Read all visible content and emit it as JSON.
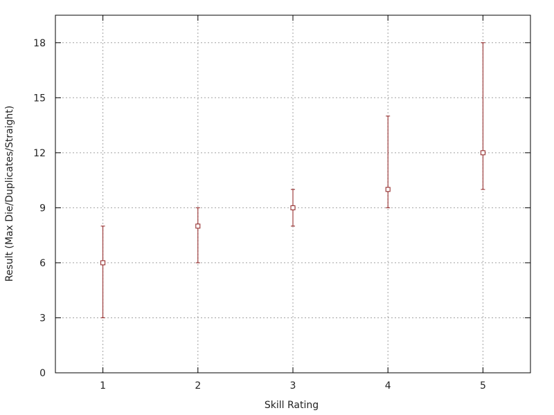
{
  "chart_data": {
    "type": "scatter",
    "title": "",
    "xlabel": "Skill Rating",
    "ylabel": "Result (Max Die/Duplicates/Straight)",
    "xlim": [
      0.5,
      5.5
    ],
    "ylim": [
      0,
      19.5
    ],
    "x_ticks": [
      1,
      2,
      3,
      4,
      5
    ],
    "y_ticks": [
      0,
      3,
      6,
      9,
      12,
      15,
      18
    ],
    "grid": true,
    "grid_style": "dotted",
    "legend": "none",
    "series": [
      {
        "marker": "open-square",
        "error_bars": true,
        "points": [
          {
            "x": 1,
            "y": 6,
            "low": 3,
            "high": 8
          },
          {
            "x": 2,
            "y": 8,
            "low": 6,
            "high": 9
          },
          {
            "x": 3,
            "y": 9,
            "low": 8,
            "high": 10
          },
          {
            "x": 4,
            "y": 10,
            "low": 9,
            "high": 14
          },
          {
            "x": 5,
            "y": 12,
            "low": 10,
            "high": 18
          }
        ]
      }
    ],
    "colors": {
      "series": "#8b1a1a",
      "axis": "#000000",
      "grid": "#a0a0a0",
      "text": "#222222"
    }
  }
}
